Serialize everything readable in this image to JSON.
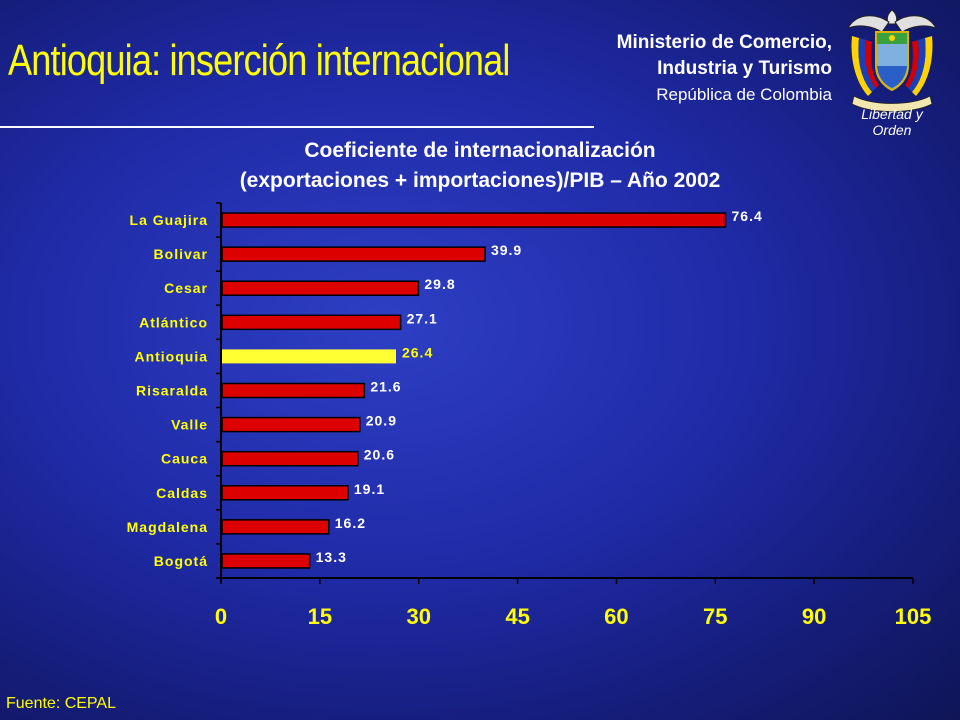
{
  "slide": {
    "title": "Antioquia: inserción internacional",
    "ministry_line1": "Ministerio de Comercio,",
    "ministry_line2": "Industria y Turismo",
    "ministry_line3": "República de Colombia",
    "crest_icon": "colombia-coat-of-arms-icon",
    "crest_motto": "Libertad y Orden",
    "source": "Fuente: CEPAL"
  },
  "colors": {
    "title": "#ffff00",
    "bar_default": "#dd0000",
    "bar_highlight": "#ffff33",
    "axis": "#000000"
  },
  "chart_data": {
    "type": "bar",
    "orientation": "horizontal",
    "title_line1": "Coeficiente de internacionalización",
    "title_line2": "(exportaciones + importaciones)/PIB – Año 2002",
    "categories": [
      "La Guajira",
      "Bolivar",
      "Cesar",
      "Atlántico",
      "Antioquia",
      "Risaralda",
      "Valle",
      "Cauca",
      "Caldas",
      "Magdalena",
      "Bogotá"
    ],
    "values": [
      76.4,
      39.9,
      29.8,
      27.1,
      26.4,
      21.6,
      20.9,
      20.6,
      19.1,
      16.2,
      13.3
    ],
    "value_labels": [
      "76.4",
      "39.9",
      "29.8",
      "27.1",
      "26.4",
      "21.6",
      "20.9",
      "20.6",
      "19.1",
      "16.2",
      "13.3"
    ],
    "highlight": "Antioquia",
    "xlim": [
      0,
      105
    ],
    "xticks": [
      0,
      15,
      30,
      45,
      60,
      75,
      90,
      105
    ],
    "grid": false,
    "legend": "none"
  }
}
